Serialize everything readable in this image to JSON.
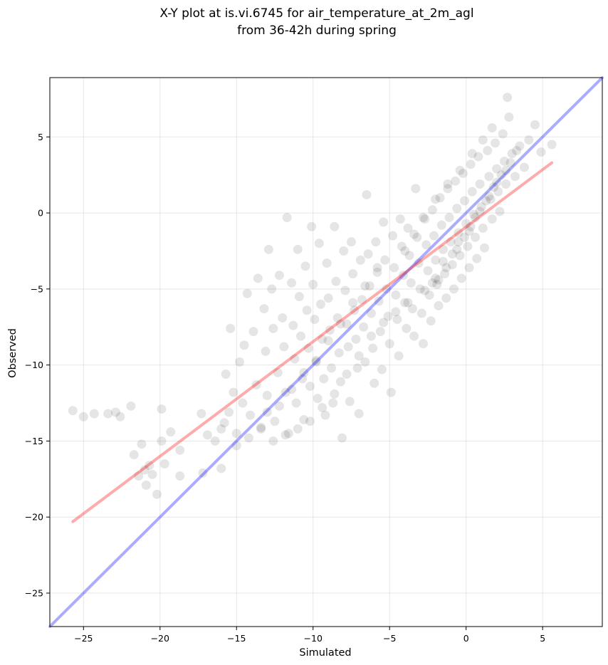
{
  "chart_data": {
    "type": "scatter",
    "title_lines": [
      "X-Y plot at is.vi.6745 for air_temperature_at_2m_agl",
      "from 36-42h during spring"
    ],
    "xlabel": "Simulated",
    "ylabel": "Observed",
    "xlim": [
      -27.2,
      8.9
    ],
    "ylim": [
      -27.2,
      8.9
    ],
    "xticks": [
      -25,
      -20,
      -15,
      -10,
      -5,
      0,
      5
    ],
    "yticks": [
      -25,
      -20,
      -15,
      -10,
      -5,
      0,
      5
    ],
    "xtick_labels": [
      "−25",
      "−20",
      "−15",
      "−10",
      "−5",
      "0",
      "5"
    ],
    "ytick_labels": [
      "−25",
      "−20",
      "−15",
      "−10",
      "−5",
      "0",
      "5"
    ],
    "grid": true,
    "point_color": "#000000",
    "point_opacity": 0.1,
    "points": [
      [
        -25.7,
        -13.0
      ],
      [
        -25.0,
        -13.4
      ],
      [
        -24.3,
        -13.2
      ],
      [
        -23.4,
        -13.2
      ],
      [
        -22.9,
        -13.1
      ],
      [
        -22.6,
        -13.4
      ],
      [
        -21.9,
        -12.7
      ],
      [
        -21.7,
        -15.9
      ],
      [
        -21.4,
        -17.3
      ],
      [
        -21.2,
        -15.2
      ],
      [
        -21.0,
        -16.9
      ],
      [
        -20.9,
        -17.9
      ],
      [
        -20.7,
        -16.6
      ],
      [
        -20.5,
        -17.2
      ],
      [
        -20.2,
        -18.5
      ],
      [
        -19.9,
        -12.9
      ],
      [
        -19.9,
        -15.0
      ],
      [
        -19.7,
        -16.5
      ],
      [
        -19.3,
        -14.4
      ],
      [
        -18.7,
        -15.6
      ],
      [
        -18.7,
        -17.3
      ],
      [
        -17.3,
        -13.2
      ],
      [
        -17.2,
        -17.1
      ],
      [
        -16.9,
        -14.6
      ],
      [
        -16.4,
        -15.0
      ],
      [
        -16.0,
        -14.2
      ],
      [
        -16.0,
        -16.8
      ],
      [
        -15.8,
        -13.8
      ],
      [
        -15.7,
        -10.6
      ],
      [
        -15.5,
        -13.1
      ],
      [
        -15.4,
        -7.6
      ],
      [
        -15.2,
        -11.8
      ],
      [
        -15.0,
        -14.5
      ],
      [
        -14.8,
        -9.8
      ],
      [
        -14.6,
        -12.5
      ],
      [
        -14.5,
        -8.7
      ],
      [
        -14.3,
        -5.3
      ],
      [
        -14.1,
        -13.3
      ],
      [
        -13.9,
        -7.8
      ],
      [
        -13.7,
        -11.3
      ],
      [
        -13.6,
        -4.3
      ],
      [
        -13.4,
        -14.1
      ],
      [
        -13.2,
        -6.3
      ],
      [
        -13.1,
        -9.1
      ],
      [
        -13.0,
        -12.0
      ],
      [
        -12.9,
        -2.4
      ],
      [
        -12.7,
        -5.0
      ],
      [
        -12.6,
        -7.6
      ],
      [
        -12.5,
        -13.7
      ],
      [
        -12.3,
        -10.5
      ],
      [
        -12.2,
        -4.1
      ],
      [
        -12.0,
        -6.9
      ],
      [
        -11.9,
        -8.8
      ],
      [
        -11.8,
        -11.8
      ],
      [
        -11.7,
        -0.3
      ],
      [
        -11.6,
        -14.5
      ],
      [
        -11.4,
        -4.6
      ],
      [
        -11.3,
        -7.4
      ],
      [
        -11.2,
        -9.6
      ],
      [
        -11.1,
        -12.5
      ],
      [
        -11.0,
        -2.4
      ],
      [
        -10.9,
        -5.5
      ],
      [
        -10.8,
        -8.1
      ],
      [
        -10.7,
        -10.9
      ],
      [
        -10.6,
        -13.6
      ],
      [
        -10.5,
        -3.5
      ],
      [
        -10.4,
        -6.4
      ],
      [
        -10.3,
        -8.9
      ],
      [
        -10.2,
        -11.4
      ],
      [
        -10.1,
        -0.9
      ],
      [
        -10.0,
        -4.7
      ],
      [
        -9.9,
        -7.0
      ],
      [
        -9.8,
        -9.8
      ],
      [
        -9.7,
        -12.2
      ],
      [
        -9.6,
        -2.0
      ],
      [
        -9.5,
        -6.0
      ],
      [
        -9.4,
        -8.3
      ],
      [
        -9.3,
        -10.9
      ],
      [
        -9.2,
        -13.3
      ],
      [
        -9.1,
        -3.3
      ],
      [
        -9.0,
        -5.6
      ],
      [
        -8.9,
        -7.7
      ],
      [
        -8.8,
        -10.2
      ],
      [
        -8.7,
        -12.5
      ],
      [
        -8.6,
        -0.9
      ],
      [
        -8.5,
        -4.5
      ],
      [
        -8.4,
        -6.9
      ],
      [
        -8.3,
        -9.2
      ],
      [
        -8.2,
        -11.1
      ],
      [
        -8.1,
        -14.8
      ],
      [
        -8.0,
        -2.5
      ],
      [
        -7.9,
        -5.1
      ],
      [
        -7.8,
        -7.3
      ],
      [
        -7.7,
        -8.8
      ],
      [
        -7.6,
        -12.4
      ],
      [
        -7.5,
        -1.9
      ],
      [
        -7.4,
        -4.0
      ],
      [
        -7.3,
        -6.4
      ],
      [
        -7.2,
        -8.3
      ],
      [
        -7.1,
        -10.2
      ],
      [
        -7.0,
        -13.2
      ],
      [
        -6.9,
        -3.1
      ],
      [
        -6.8,
        -5.7
      ],
      [
        -6.7,
        -7.5
      ],
      [
        -6.6,
        -9.8
      ],
      [
        -6.5,
        1.2
      ],
      [
        -6.4,
        -2.7
      ],
      [
        -6.3,
        -4.8
      ],
      [
        -6.2,
        -6.6
      ],
      [
        -6.1,
        -8.9
      ],
      [
        -6.0,
        -11.2
      ],
      [
        -5.9,
        -1.9
      ],
      [
        -5.8,
        -3.9
      ],
      [
        -5.7,
        -5.8
      ],
      [
        -5.6,
        -7.8
      ],
      [
        -5.5,
        -10.3
      ],
      [
        -5.4,
        -0.6
      ],
      [
        -5.3,
        -3.1
      ],
      [
        -5.2,
        -5.0
      ],
      [
        -5.1,
        -6.8
      ],
      [
        -5.0,
        -8.6
      ],
      [
        -4.9,
        -11.8
      ],
      [
        -4.8,
        -1.5
      ],
      [
        -4.7,
        -3.6
      ],
      [
        -4.6,
        -5.4
      ],
      [
        -4.5,
        -7.0
      ],
      [
        -4.4,
        -9.4
      ],
      [
        -4.3,
        -0.4
      ],
      [
        -4.2,
        -2.2
      ],
      [
        -4.1,
        -4.1
      ],
      [
        -4.0,
        -5.9
      ],
      [
        -3.9,
        -7.6
      ],
      [
        -3.8,
        -1.0
      ],
      [
        -3.7,
        -2.8
      ],
      [
        -3.6,
        -4.6
      ],
      [
        -3.5,
        -6.3
      ],
      [
        -3.4,
        -8.1
      ],
      [
        -3.3,
        1.6
      ],
      [
        -3.2,
        -1.6
      ],
      [
        -3.1,
        -3.3
      ],
      [
        -3.0,
        -5.0
      ],
      [
        -2.9,
        -6.6
      ],
      [
        -2.8,
        -8.6
      ],
      [
        -2.7,
        -0.4
      ],
      [
        -2.6,
        -2.1
      ],
      [
        -2.5,
        -3.8
      ],
      [
        -2.4,
        -5.4
      ],
      [
        -2.3,
        -7.1
      ],
      [
        -2.2,
        0.2
      ],
      [
        -2.1,
        -1.5
      ],
      [
        -2.0,
        -3.1
      ],
      [
        -1.9,
        -4.7
      ],
      [
        -1.8,
        -6.1
      ],
      [
        -1.7,
        1.0
      ],
      [
        -1.6,
        -0.8
      ],
      [
        -1.5,
        -2.4
      ],
      [
        -1.4,
        -4.0
      ],
      [
        -1.3,
        -5.6
      ],
      [
        -1.2,
        1.6
      ],
      [
        -1.1,
        -0.3
      ],
      [
        -1.0,
        -1.9
      ],
      [
        -0.9,
        -3.4
      ],
      [
        -0.8,
        -5.0
      ],
      [
        -0.7,
        2.1
      ],
      [
        -0.6,
        0.3
      ],
      [
        -0.5,
        -1.3
      ],
      [
        -0.4,
        -2.8
      ],
      [
        -0.3,
        -4.3
      ],
      [
        -0.2,
        2.6
      ],
      [
        -0.1,
        0.8
      ],
      [
        0.0,
        -0.7
      ],
      [
        0.1,
        -2.2
      ],
      [
        0.2,
        -3.6
      ],
      [
        0.3,
        3.2
      ],
      [
        0.4,
        1.4
      ],
      [
        0.5,
        -0.1
      ],
      [
        0.6,
        -1.6
      ],
      [
        0.7,
        -3.0
      ],
      [
        0.8,
        3.7
      ],
      [
        0.9,
        1.9
      ],
      [
        1.0,
        0.4
      ],
      [
        1.1,
        -1.0
      ],
      [
        1.2,
        -2.3
      ],
      [
        1.4,
        4.1
      ],
      [
        1.5,
        2.4
      ],
      [
        1.6,
        0.9
      ],
      [
        1.7,
        -0.4
      ],
      [
        1.9,
        4.6
      ],
      [
        2.0,
        2.9
      ],
      [
        2.1,
        1.4
      ],
      [
        2.2,
        0.1
      ],
      [
        2.4,
        5.2
      ],
      [
        2.5,
        3.4
      ],
      [
        2.6,
        1.9
      ],
      [
        2.7,
        7.6
      ],
      [
        2.8,
        6.3
      ],
      [
        3.0,
        3.9
      ],
      [
        3.2,
        2.4
      ],
      [
        3.5,
        4.4
      ],
      [
        3.8,
        3.0
      ],
      [
        4.1,
        4.8
      ],
      [
        4.5,
        5.8
      ],
      [
        4.9,
        4.0
      ],
      [
        5.6,
        4.5
      ],
      [
        -2.2,
        -4.6
      ],
      [
        -1.5,
        -3.2
      ],
      [
        -1.8,
        -4.4
      ],
      [
        -0.9,
        -2.7
      ],
      [
        -0.5,
        -1.9
      ],
      [
        0.2,
        -1.2
      ],
      [
        0.6,
        -0.3
      ],
      [
        1.3,
        0.8
      ],
      [
        1.8,
        1.7
      ],
      [
        2.3,
        2.5
      ],
      [
        2.9,
        3.3
      ],
      [
        3.3,
        4.1
      ],
      [
        -3.8,
        -5.9
      ],
      [
        -4.6,
        -6.5
      ],
      [
        -5.4,
        -7.2
      ],
      [
        -6.2,
        -8.1
      ],
      [
        -7.0,
        -9.4
      ],
      [
        -7.8,
        -10.6
      ],
      [
        -8.6,
        -11.9
      ],
      [
        -9.4,
        -12.8
      ],
      [
        -10.2,
        -13.7
      ],
      [
        -11.0,
        -14.2
      ],
      [
        -11.8,
        -14.6
      ],
      [
        -12.6,
        -15.0
      ],
      [
        -13.4,
        -14.2
      ],
      [
        -14.2,
        -14.8
      ],
      [
        -15.0,
        -15.3
      ],
      [
        -4.0,
        -2.5
      ],
      [
        -3.4,
        -1.4
      ],
      [
        -2.8,
        -0.3
      ],
      [
        -2.0,
        0.9
      ],
      [
        -1.2,
        1.9
      ],
      [
        -0.4,
        2.8
      ],
      [
        0.4,
        3.9
      ],
      [
        1.1,
        4.8
      ],
      [
        1.7,
        5.6
      ],
      [
        -5.8,
        -3.6
      ],
      [
        -6.6,
        -4.8
      ],
      [
        -7.4,
        -5.9
      ],
      [
        -8.2,
        -7.3
      ],
      [
        -9.0,
        -8.4
      ],
      [
        -9.8,
        -9.7
      ],
      [
        -10.6,
        -10.5
      ],
      [
        -11.4,
        -11.6
      ],
      [
        -12.2,
        -12.7
      ],
      [
        -13.0,
        -13.1
      ],
      [
        -0.1,
        -1.6
      ],
      [
        0.3,
        -0.9
      ],
      [
        0.9,
        0.1
      ],
      [
        1.5,
        1.1
      ],
      [
        2.0,
        2.0
      ],
      [
        2.6,
        2.8
      ],
      [
        -0.6,
        -2.4
      ],
      [
        -1.3,
        -3.6
      ],
      [
        -2.0,
        -4.3
      ],
      [
        -2.7,
        -5.1
      ]
    ],
    "series": [
      {
        "type": "line",
        "color": "#0000ff",
        "opacity": 0.33,
        "points": [
          [
            -27.2,
            -27.2
          ],
          [
            8.9,
            8.9
          ]
        ]
      },
      {
        "type": "line",
        "color": "#ff0000",
        "opacity": 0.33,
        "points": [
          [
            -25.7,
            -20.3
          ],
          [
            5.6,
            3.3
          ]
        ]
      }
    ]
  }
}
